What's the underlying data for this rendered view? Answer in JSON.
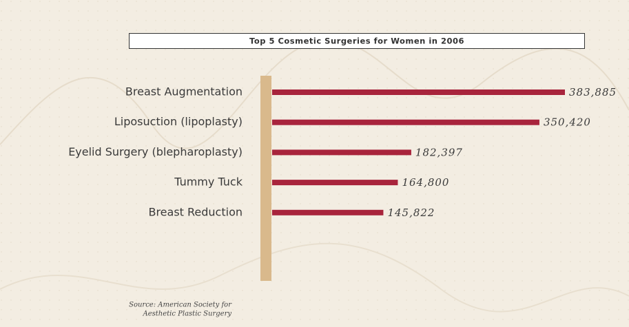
{
  "chart_data": {
    "type": "bar",
    "orientation": "horizontal",
    "title": "Top 5 Cosmetic Surgeries for Women in 2006",
    "categories": [
      "Breast Augmentation",
      "Liposuction (lipoplasty)",
      "Eyelid Surgery (blepharoplasty)",
      "Tummy Tuck",
      "Breast Reduction"
    ],
    "values": [
      383885,
      350420,
      182397,
      164800,
      145822
    ],
    "value_labels": [
      "383,885",
      "350,420",
      "182,397",
      "164,800",
      "145,822"
    ],
    "color": "#a8243c",
    "source": [
      "Source: American Society for",
      "Aesthetic Plastic Surgery"
    ]
  }
}
